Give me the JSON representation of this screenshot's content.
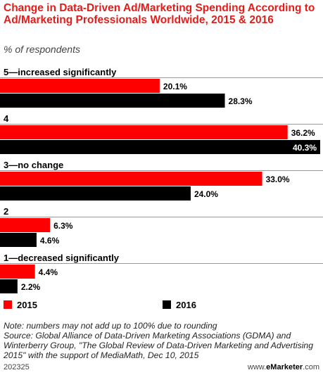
{
  "title": "Change in Data-Driven Ad/Marketing Spending According to Ad/Marketing Professionals Worldwide, 2015 & 2016",
  "subtitle": "% of respondents",
  "colors": {
    "y2015": "#ff0000",
    "y2016": "#000000",
    "title": "#e31d1a"
  },
  "legend": {
    "a": "2015",
    "b": "2016"
  },
  "chart_data": {
    "type": "bar",
    "orientation": "horizontal",
    "title": "Change in Data-Driven Ad/Marketing Spending According to Ad/Marketing Professionals Worldwide, 2015 & 2016",
    "subtitle": "% of respondents",
    "categories": [
      "5—increased significantly",
      "4",
      "3—no change",
      "2",
      "1—decreased significantly"
    ],
    "series": [
      {
        "name": "2015",
        "values": [
          20.1,
          36.2,
          33.0,
          6.3,
          4.4
        ],
        "labels": [
          "20.1%",
          "36.2%",
          "33.0%",
          "6.3%",
          "4.4%"
        ]
      },
      {
        "name": "2016",
        "values": [
          28.3,
          40.3,
          24.0,
          4.6,
          2.2
        ],
        "labels": [
          "28.3%",
          "40.3%",
          "24.0%",
          "4.6%",
          "2.2%"
        ]
      }
    ],
    "xlim": [
      0,
      40.3
    ],
    "grid": false,
    "legend_position": "bottom"
  },
  "notes": {
    "note": "Note: numbers may not add up to 100% due to rounding",
    "source": "Source: Global Alliance of Data-Driven Marketing Associations (GDMA) and Winterberry Group, \"The Global Review of Data-Driven Marketing and Advertising 2015\" with the support of MediaMath, Dec 10, 2015"
  },
  "footer": {
    "id": "202325",
    "brand_prefix": "www.",
    "brand_name": "eMarketer",
    "brand_suffix": ".com"
  }
}
